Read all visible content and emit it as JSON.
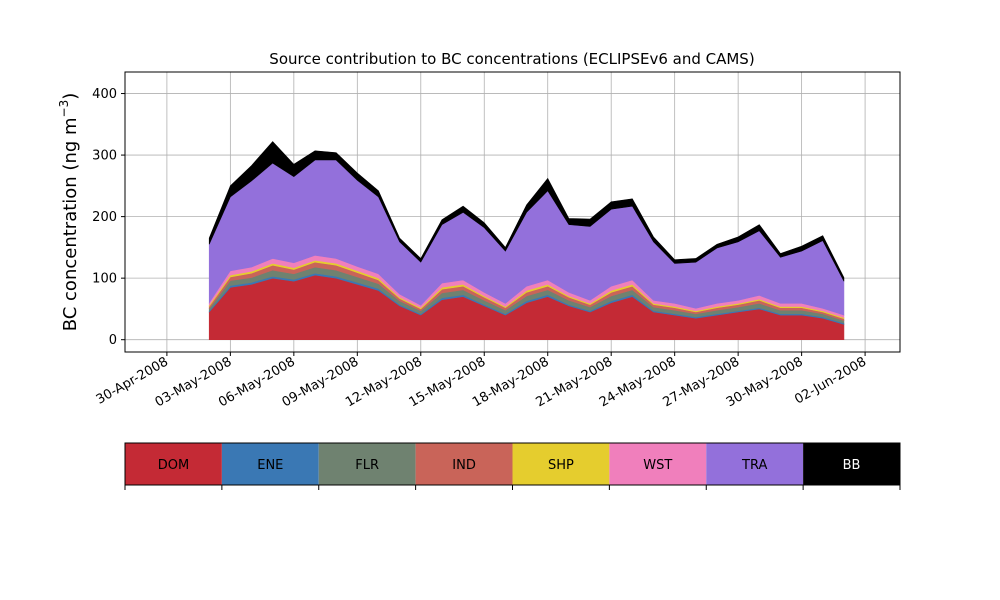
{
  "chart_data": {
    "type": "area",
    "stacked": true,
    "title": "Source contribution to BC concentrations (ECLIPSEv6 and CAMS)",
    "xlabel": "",
    "ylabel_main": "BC concentration (ng m",
    "ylabel_sup": "−3",
    "ylabel_close": ")",
    "ylim": [
      -20,
      435
    ],
    "yticks": [
      0,
      100,
      200,
      300,
      400
    ],
    "grid": true,
    "x_start": "2008-05-02",
    "x_end": "2008-06-02",
    "xticks": [
      "30-Apr-2008",
      "03-May-2008",
      "06-May-2008",
      "09-May-2008",
      "12-May-2008",
      "15-May-2008",
      "18-May-2008",
      "21-May-2008",
      "24-May-2008",
      "27-May-2008",
      "30-May-2008",
      "02-Jun-2008"
    ],
    "legend_placement": "below chart (colorbar)",
    "x": [
      "2008-05-02",
      "2008-05-03",
      "2008-05-04",
      "2008-05-05",
      "2008-05-06",
      "2008-05-07",
      "2008-05-08",
      "2008-05-09",
      "2008-05-10",
      "2008-05-11",
      "2008-05-12",
      "2008-05-13",
      "2008-05-14",
      "2008-05-15",
      "2008-05-16",
      "2008-05-17",
      "2008-05-18",
      "2008-05-19",
      "2008-05-20",
      "2008-05-21",
      "2008-05-22",
      "2008-05-23",
      "2008-05-24",
      "2008-05-25",
      "2008-05-26",
      "2008-05-27",
      "2008-05-28",
      "2008-05-29",
      "2008-05-30",
      "2008-05-31",
      "2008-06-01"
    ],
    "series": [
      {
        "name": "DOM",
        "color": "#c42a35",
        "values": [
          45,
          85,
          90,
          100,
          95,
          105,
          100,
          90,
          80,
          55,
          40,
          65,
          70,
          55,
          40,
          60,
          70,
          55,
          45,
          60,
          70,
          45,
          40,
          35,
          40,
          45,
          50,
          40,
          40,
          35,
          25
        ]
      },
      {
        "name": "ENE",
        "color": "#3a78b4",
        "values": [
          2,
          3,
          3,
          3,
          3,
          3,
          3,
          3,
          3,
          2,
          2,
          3,
          3,
          2,
          2,
          3,
          3,
          2,
          2,
          3,
          3,
          2,
          2,
          2,
          2,
          2,
          2,
          2,
          2,
          2,
          2
        ]
      },
      {
        "name": "FLR",
        "color": "#6f8270",
        "values": [
          4,
          8,
          8,
          10,
          9,
          10,
          10,
          9,
          8,
          6,
          5,
          8,
          8,
          7,
          6,
          8,
          8,
          7,
          6,
          8,
          8,
          6,
          6,
          5,
          6,
          6,
          7,
          6,
          6,
          5,
          4
        ]
      },
      {
        "name": "IND",
        "color": "#c96459",
        "values": [
          3,
          6,
          7,
          8,
          7,
          8,
          8,
          7,
          6,
          4,
          3,
          6,
          6,
          5,
          4,
          6,
          6,
          5,
          4,
          6,
          6,
          4,
          4,
          3,
          4,
          4,
          5,
          4,
          4,
          3,
          3
        ]
      },
      {
        "name": "SHP",
        "color": "#e5cd2e",
        "values": [
          2,
          3,
          3,
          3,
          3,
          3,
          3,
          3,
          3,
          2,
          2,
          3,
          3,
          2,
          2,
          3,
          3,
          2,
          2,
          3,
          3,
          2,
          2,
          2,
          2,
          2,
          2,
          2,
          2,
          2,
          2
        ]
      },
      {
        "name": "WST",
        "color": "#f07fbc",
        "values": [
          4,
          7,
          7,
          8,
          8,
          8,
          8,
          7,
          7,
          5,
          4,
          7,
          7,
          6,
          5,
          7,
          7,
          6,
          5,
          7,
          7,
          5,
          5,
          4,
          5,
          5,
          6,
          5,
          5,
          4,
          4
        ]
      },
      {
        "name": "TRA",
        "color": "#9370db",
        "values": [
          95,
          120,
          140,
          155,
          140,
          155,
          160,
          140,
          125,
          85,
          70,
          95,
          110,
          105,
          85,
          120,
          145,
          110,
          120,
          125,
          120,
          95,
          65,
          75,
          90,
          95,
          105,
          75,
          85,
          110,
          55
        ]
      },
      {
        "name": "BB",
        "color": "#000000",
        "values": [
          10,
          18,
          25,
          35,
          20,
          15,
          12,
          12,
          10,
          6,
          6,
          8,
          10,
          8,
          6,
          12,
          20,
          10,
          12,
          12,
          12,
          8,
          6,
          6,
          6,
          8,
          10,
          6,
          8,
          8,
          6
        ]
      }
    ]
  }
}
